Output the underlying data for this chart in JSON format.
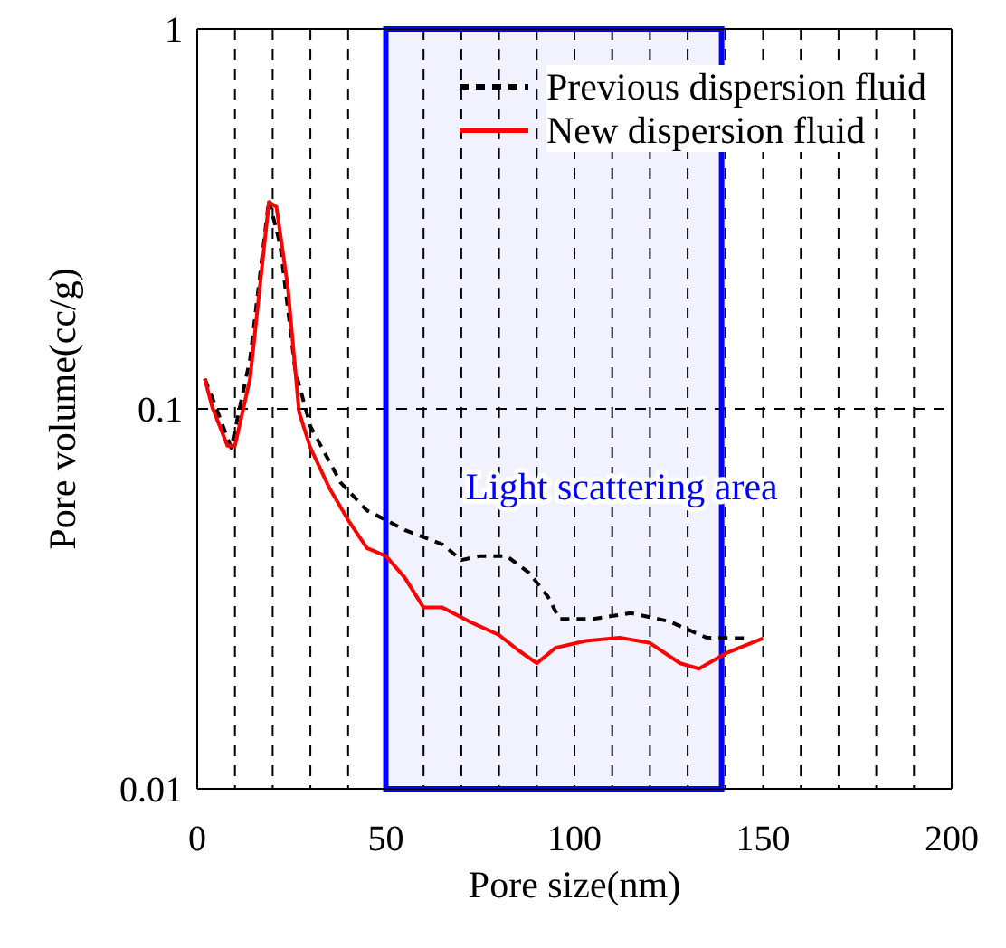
{
  "chart_data": {
    "type": "line",
    "xlabel": "Pore size(nm)",
    "ylabel": "Pore volume(cc/g)",
    "log": "y",
    "grid": true,
    "legend": "top right",
    "marker": "none",
    "xlim": [
      0,
      200
    ],
    "ylim": [
      0.01,
      1
    ],
    "xticks": [
      0,
      {
        "value": 10,
        "label": null
      },
      {
        "value": 20,
        "label": null
      },
      {
        "value": 30,
        "label": null
      },
      {
        "value": 40,
        "label": null
      },
      50,
      {
        "value": 60,
        "label": null
      },
      {
        "value": 70,
        "label": null
      },
      {
        "value": 80,
        "label": null
      },
      {
        "value": 90,
        "label": null
      },
      100,
      {
        "value": 110,
        "label": null
      },
      {
        "value": 120,
        "label": null
      },
      {
        "value": 130,
        "label": null
      },
      {
        "value": 140,
        "label": null
      },
      150,
      {
        "value": 160,
        "label": null
      },
      {
        "value": 170,
        "label": null
      },
      {
        "value": 180,
        "label": null
      },
      {
        "value": 190,
        "label": null
      },
      200
    ],
    "yticks": [
      0.01,
      0.1,
      1
    ],
    "series": [
      {
        "name": "Previous dispersion fluid",
        "color": "#000000",
        "line_style": "dashed",
        "x": [
          2,
          4,
          9,
          14,
          19,
          22,
          26,
          30,
          38,
          45,
          50,
          55,
          65,
          70,
          75,
          82,
          88,
          93,
          96,
          105,
          115,
          125,
          135,
          145
        ],
        "values": [
          0.12,
          0.107,
          0.079,
          0.135,
          0.355,
          0.27,
          0.126,
          0.09,
          0.064,
          0.054,
          0.051,
          0.048,
          0.044,
          0.04,
          0.041,
          0.041,
          0.037,
          0.032,
          0.028,
          0.028,
          0.029,
          0.0276,
          0.025,
          0.0249
        ]
      },
      {
        "name": "New dispersion fluid",
        "color": "#ff0000",
        "line_style": "solid",
        "x": [
          2,
          4,
          8,
          10,
          14,
          19,
          21,
          24,
          27,
          30,
          35,
          40,
          45,
          50,
          55,
          60,
          65,
          72,
          80,
          85,
          90,
          95,
          103,
          112,
          120,
          128,
          133,
          140,
          150
        ],
        "values": [
          0.12,
          0.101,
          0.08,
          0.08,
          0.12,
          0.35,
          0.34,
          0.21,
          0.098,
          0.079,
          0.062,
          0.051,
          0.043,
          0.041,
          0.036,
          0.03,
          0.03,
          0.0276,
          0.0254,
          0.0232,
          0.0214,
          0.0235,
          0.0245,
          0.025,
          0.0242,
          0.0214,
          0.0207,
          0.0227,
          0.0249
        ]
      }
    ],
    "bands": [
      {
        "axis": "x",
        "from": 50,
        "to": 139,
        "label": "Light scattering area",
        "color": "#0000ff"
      }
    ]
  }
}
